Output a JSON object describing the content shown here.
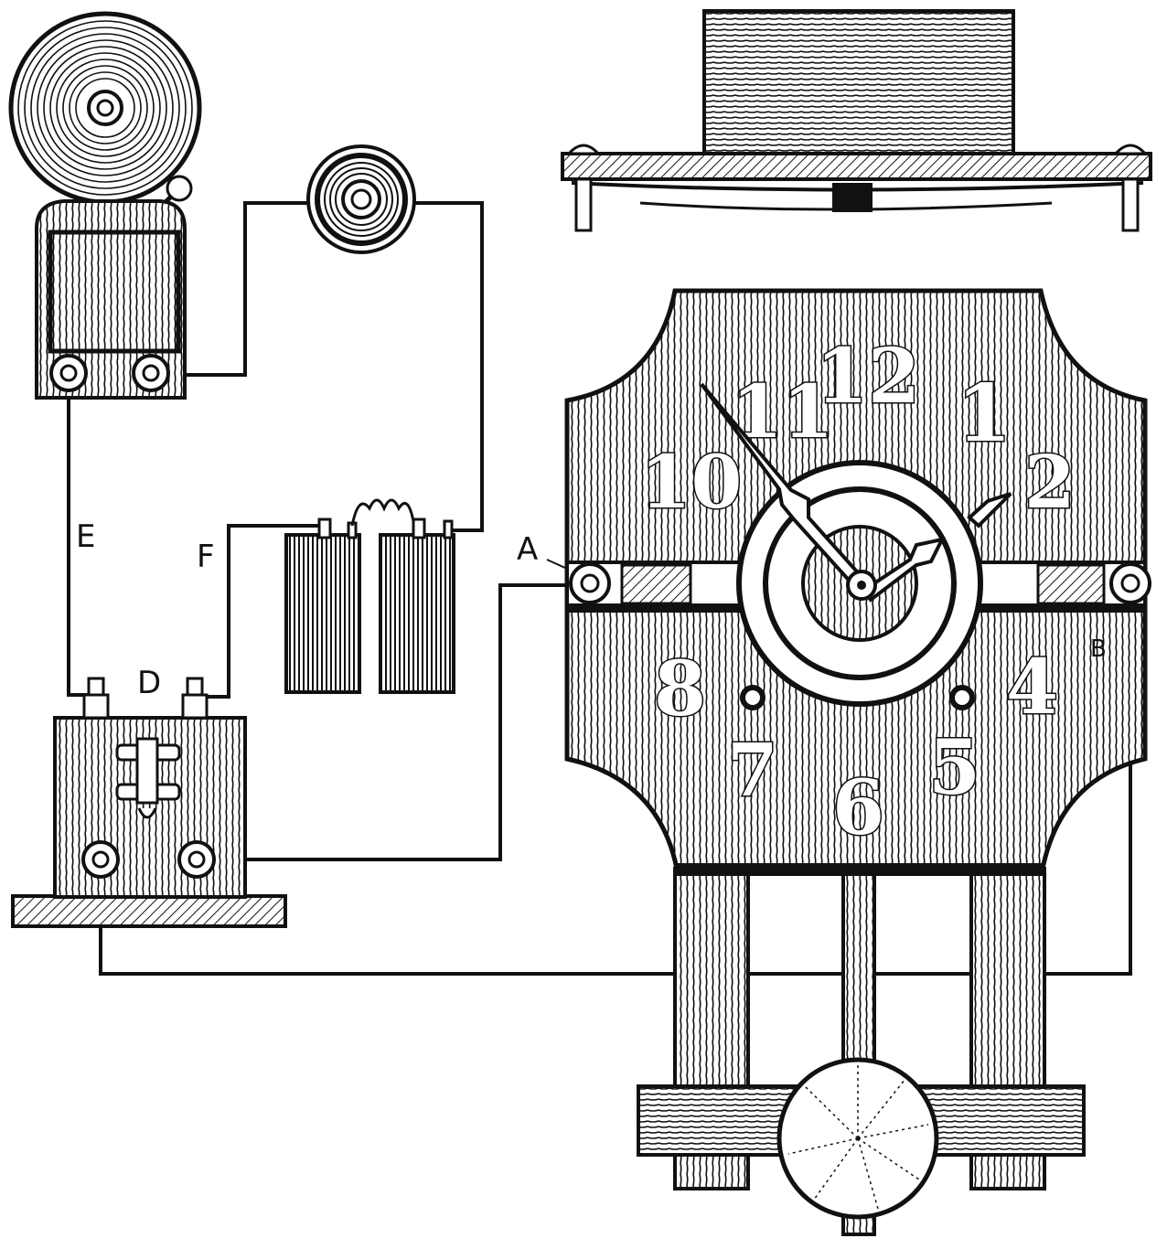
{
  "labels": {
    "A": "A",
    "B": "B",
    "D": "D",
    "E": "E",
    "F": "F"
  },
  "dial": {
    "numerals": [
      "12",
      "1",
      "2",
      "4",
      "5",
      "6",
      "7",
      "8",
      "10",
      "11"
    ]
  },
  "colors": {
    "ink": "#111111",
    "paper": "#ffffff"
  }
}
